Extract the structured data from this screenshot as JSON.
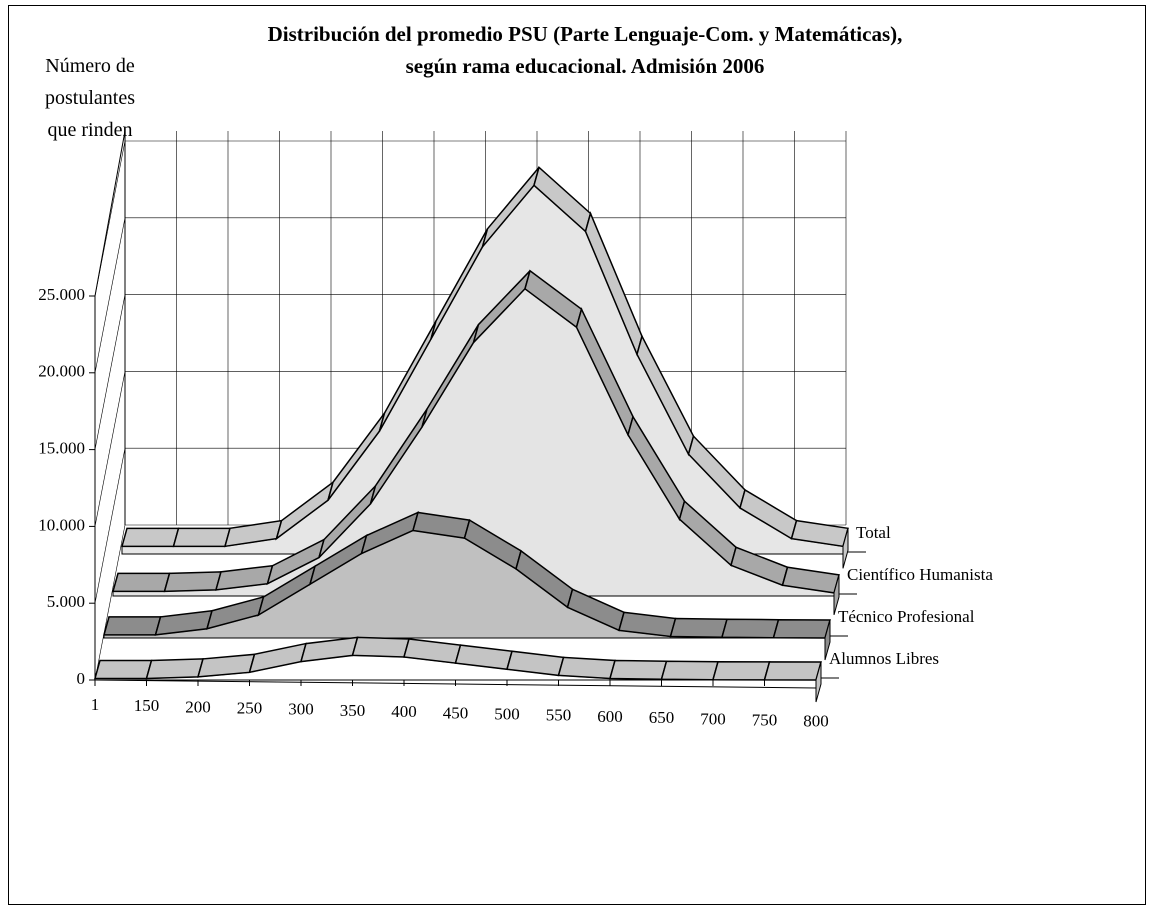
{
  "chart_data": {
    "type": "ribbon3d",
    "title": "Distribución del promedio PSU (Parte Lenguaje-Com. y Matemáticas),\nsegún rama educacional. Admisión 2006",
    "y_label": "Número de\npostulantes\nque rinden",
    "categories": [
      1,
      150,
      200,
      250,
      300,
      350,
      400,
      450,
      500,
      550,
      600,
      650,
      700,
      750,
      800
    ],
    "ylim": [
      0,
      25000
    ],
    "yticks": [
      {
        "value": 0,
        "label": "0"
      },
      {
        "value": 5000,
        "label": "5.000"
      },
      {
        "value": 10000,
        "label": "10.000"
      },
      {
        "value": 15000,
        "label": "15.000"
      },
      {
        "value": 20000,
        "label": "20.000"
      },
      {
        "value": 25000,
        "label": "25.000"
      }
    ],
    "grid": true,
    "series": [
      {
        "name": "Total",
        "color": "#c8c8c8",
        "area_color": "#e6e6e6",
        "values": [
          500,
          500,
          500,
          1000,
          3500,
          8000,
          14000,
          20000,
          24000,
          21000,
          13000,
          6500,
          3000,
          1000,
          500
        ]
      },
      {
        "name": "Científico Humanista",
        "color": "#a8a8a8",
        "area_color": "#e4e4e4",
        "values": [
          300,
          300,
          400,
          800,
          2500,
          6000,
          11000,
          16500,
          20000,
          17500,
          10500,
          5000,
          2000,
          700,
          200
        ]
      },
      {
        "name": "Técnico Profesional",
        "color": "#8c8c8c",
        "area_color": "#c0c0c0",
        "values": [
          200,
          200,
          600,
          1500,
          3500,
          5500,
          7000,
          6500,
          4500,
          2000,
          500,
          100,
          50,
          20,
          0
        ]
      },
      {
        "name": "Alumnos Libres",
        "color": "#c4c4c4",
        "area_color": "#ffffff",
        "values": [
          100,
          100,
          200,
          500,
          1200,
          1600,
          1500,
          1100,
          700,
          300,
          100,
          50,
          20,
          10,
          0
        ]
      }
    ]
  }
}
